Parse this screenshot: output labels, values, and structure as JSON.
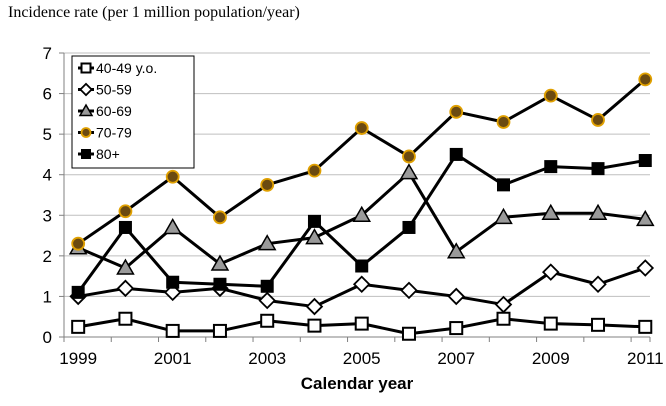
{
  "chart_data": {
    "type": "line",
    "ylabel": "Incidence rate (per 1 million population/year)",
    "xlabel": "Calendar year",
    "x": [
      1999,
      2000,
      2001,
      2002,
      2003,
      2004,
      2005,
      2006,
      2007,
      2008,
      2009,
      2010,
      2011
    ],
    "x_tick_labels": [
      "1999",
      "2001",
      "2003",
      "2005",
      "2007",
      "2009",
      "2011"
    ],
    "x_tick_values": [
      1999,
      2001,
      2003,
      2005,
      2007,
      2009,
      2011
    ],
    "ylim": [
      0,
      7
    ],
    "y_ticks": [
      0,
      1,
      2,
      3,
      4,
      5,
      6,
      7
    ],
    "grid": "horizontal",
    "legend_position": "top-left",
    "series": [
      {
        "name": "40-49 y.o.",
        "marker": "open-square",
        "color": "#000000",
        "values": [
          0.25,
          0.45,
          0.15,
          0.15,
          0.4,
          0.28,
          0.33,
          0.08,
          0.22,
          0.45,
          0.33,
          0.3,
          0.25
        ]
      },
      {
        "name": "50-59",
        "marker": "open-diamond",
        "color": "#000000",
        "values": [
          1.0,
          1.2,
          1.1,
          1.2,
          0.9,
          0.75,
          1.3,
          1.15,
          1.0,
          0.8,
          1.6,
          1.3,
          1.7
        ]
      },
      {
        "name": "60-69",
        "marker": "gray-triangle",
        "color": "#000000",
        "values": [
          2.2,
          1.7,
          2.7,
          1.8,
          2.3,
          2.45,
          3.0,
          4.05,
          2.1,
          2.95,
          3.05,
          3.05,
          2.9
        ]
      },
      {
        "name": "70-79",
        "marker": "orange-circle",
        "color": "#000000",
        "values": [
          2.3,
          3.1,
          3.95,
          2.95,
          3.75,
          4.1,
          5.15,
          4.45,
          5.55,
          5.3,
          5.95,
          5.35,
          6.35
        ]
      },
      {
        "name": "80+",
        "marker": "filled-square",
        "color": "#000000",
        "values": [
          1.1,
          2.7,
          1.35,
          1.3,
          1.25,
          2.85,
          1.75,
          2.7,
          4.5,
          3.75,
          4.2,
          4.15,
          4.35
        ]
      }
    ]
  }
}
